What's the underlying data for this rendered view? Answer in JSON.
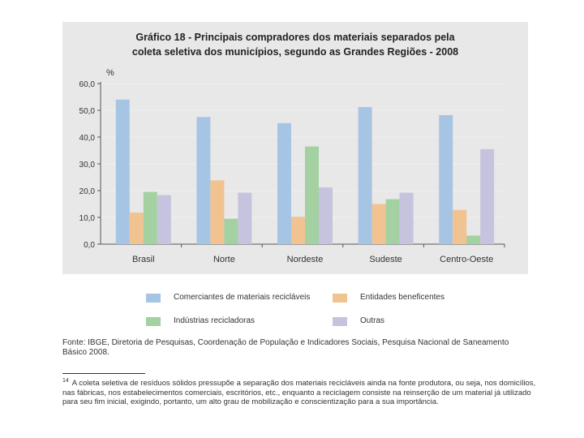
{
  "chart_data": {
    "type": "bar",
    "title_lines": [
      "Gráfico 18 - Principais compradores dos materiais separados pela",
      "coleta seletiva dos municípios, segundo as Grandes Regiões - 2008"
    ],
    "ylabel": "%",
    "ylim": [
      0,
      60
    ],
    "y_ticks": [
      "0,0",
      "10,0",
      "20,0",
      "30,0",
      "40,0",
      "50,0",
      "60,0"
    ],
    "categories": [
      "Brasil",
      "Norte",
      "Nordeste",
      "Sudeste",
      "Centro-Oeste"
    ],
    "series": [
      {
        "name": "Comerciantes de materiais recicláveis",
        "color": "#a6c5e5",
        "values": [
          54.0,
          47.5,
          45.2,
          51.2,
          48.2
        ]
      },
      {
        "name": "Entidades beneficentes",
        "color": "#f1c391",
        "values": [
          11.8,
          23.8,
          10.2,
          15.0,
          12.8
        ]
      },
      {
        "name": "Indústrias recicladoras",
        "color": "#a3d1a1",
        "values": [
          19.5,
          9.5,
          36.5,
          16.8,
          3.2
        ]
      },
      {
        "name": "Outras",
        "color": "#c6c3df",
        "values": [
          18.3,
          19.2,
          21.2,
          19.2,
          35.5
        ]
      }
    ]
  },
  "source_note": "Fonte: IBGE, Diretoria de Pesquisas, Coordenação de População e Indicadores Sociais, Pesquisa Nacional de Saneamento Básico 2008.",
  "footnote": {
    "mark": "14",
    "text": "A coleta seletiva de resíduos sólidos pressupõe a separação dos materiais recicláveis ainda na fonte produtora, ou seja, nos domicílios, nas fábricas, nos estabelecimentos comerciais, escritórios, etc., enquanto a reciclagem consiste na reinserção de um material já utilizado para seu fim inicial, exigindo, portanto, um alto grau de mobilização e conscientização para a sua importância."
  }
}
